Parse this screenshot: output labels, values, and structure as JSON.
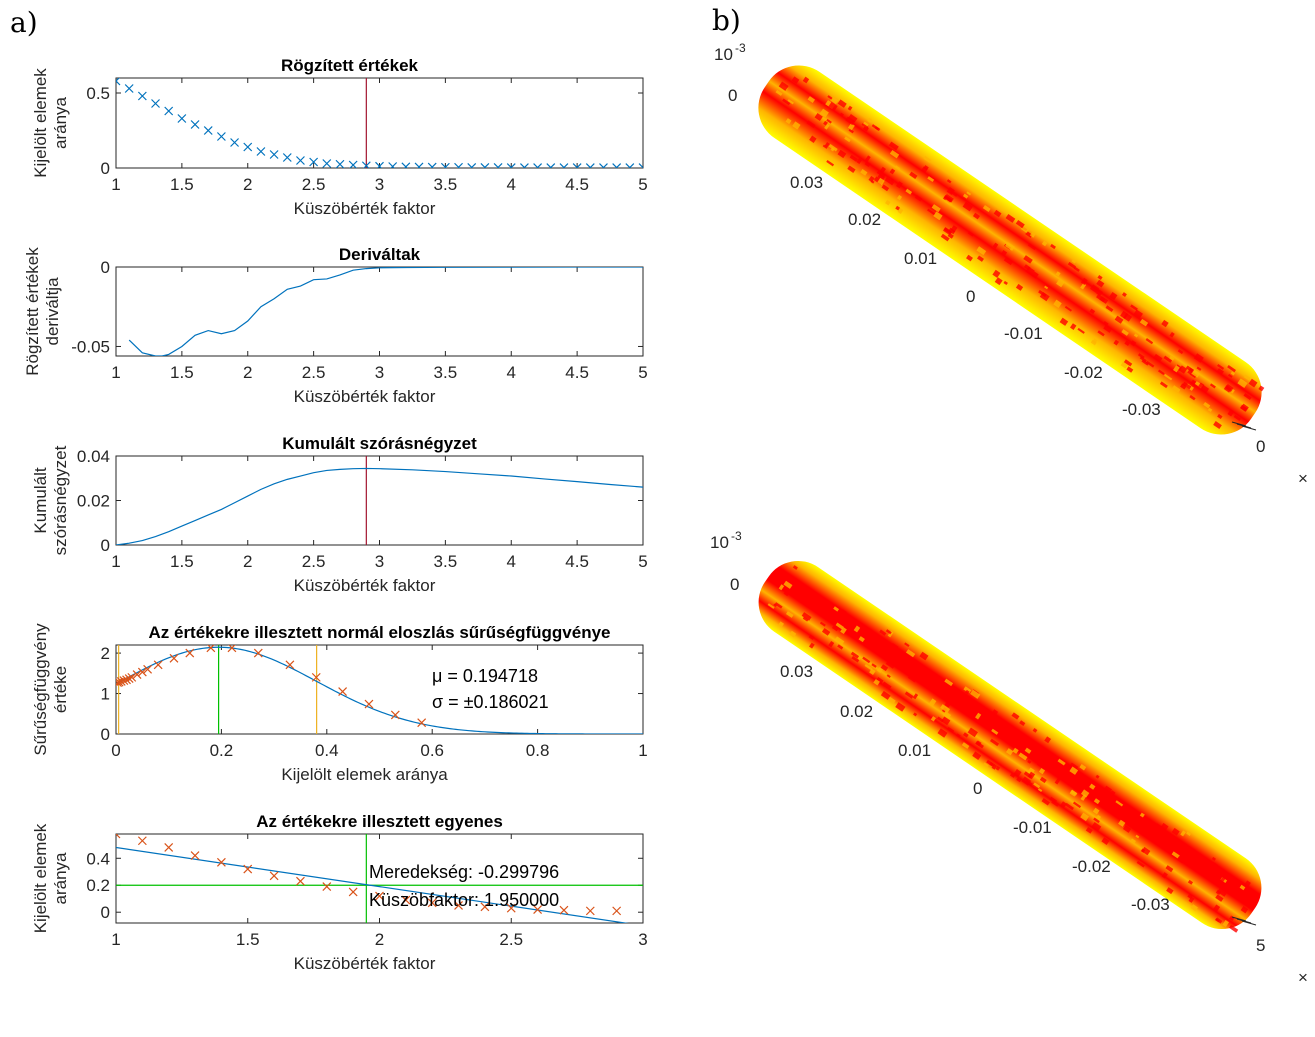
{
  "panel_labels": {
    "a": "a)",
    "b": "b)"
  },
  "chart_data": [
    {
      "type": "scatter",
      "title": "Rögzített értékek",
      "xlabel": "Küszöbérték faktor",
      "ylabel": [
        "Kijelölt elemek",
        "aránya"
      ],
      "xlim": [
        1,
        5
      ],
      "ylim": [
        0,
        0.6
      ],
      "xticks": [
        1,
        1.5,
        2,
        2.5,
        3,
        3.5,
        4,
        4.5,
        5
      ],
      "yticks": [
        0,
        0.5
      ],
      "series": [
        {
          "marker": "x",
          "color": "#0072BD",
          "x": [
            1.0,
            1.1,
            1.2,
            1.3,
            1.4,
            1.5,
            1.6,
            1.7,
            1.8,
            1.9,
            2.0,
            2.1,
            2.2,
            2.3,
            2.4,
            2.5,
            2.6,
            2.7,
            2.8,
            2.9,
            3.0,
            3.1,
            3.2,
            3.3,
            3.4,
            3.5,
            3.6,
            3.7,
            3.8,
            3.9,
            4.0,
            4.1,
            4.2,
            4.3,
            4.4,
            4.5,
            4.6,
            4.7,
            4.8,
            4.9,
            5.0
          ],
          "y": [
            0.58,
            0.53,
            0.48,
            0.43,
            0.38,
            0.33,
            0.29,
            0.25,
            0.21,
            0.17,
            0.14,
            0.11,
            0.09,
            0.07,
            0.05,
            0.04,
            0.03,
            0.025,
            0.02,
            0.015,
            0.012,
            0.01,
            0.008,
            0.007,
            0.006,
            0.005,
            0.005,
            0.004,
            0.004,
            0.004,
            0.003,
            0.003,
            0.003,
            0.003,
            0.003,
            0.003,
            0.003,
            0.003,
            0.003,
            0.003,
            0.003
          ]
        }
      ],
      "vlines": [
        {
          "x": 2.9,
          "color": "#A2142F"
        }
      ]
    },
    {
      "type": "line",
      "title": "Deriváltak",
      "xlabel": "Küszöbérték faktor",
      "ylabel": [
        "Rögzített értékek",
        "deriváltja"
      ],
      "xlim": [
        1,
        5
      ],
      "ylim": [
        -0.056,
        0
      ],
      "xticks": [
        1,
        1.5,
        2,
        2.5,
        3,
        3.5,
        4,
        4.5,
        5
      ],
      "yticks": [
        -0.05,
        0
      ],
      "yticklabels": [
        "-0.05",
        "0"
      ],
      "series": [
        {
          "color": "#0072BD",
          "x": [
            1.1,
            1.2,
            1.3,
            1.35,
            1.4,
            1.5,
            1.6,
            1.7,
            1.8,
            1.9,
            2.0,
            2.1,
            2.2,
            2.3,
            2.4,
            2.5,
            2.6,
            2.7,
            2.8,
            2.9,
            3.0,
            3.2,
            3.5,
            4.0,
            4.5,
            5.0
          ],
          "y": [
            -0.046,
            -0.054,
            -0.056,
            -0.056,
            -0.055,
            -0.05,
            -0.043,
            -0.04,
            -0.042,
            -0.04,
            -0.034,
            -0.025,
            -0.02,
            -0.014,
            -0.012,
            -0.008,
            -0.0075,
            -0.005,
            -0.002,
            -0.001,
            -0.0005,
            -0.0003,
            -0.0002,
            -0.0001,
            -5e-05,
            0
          ]
        }
      ]
    },
    {
      "type": "line",
      "title": "Kumulált szórásnégyzet",
      "xlabel": "Küszöbérték faktor",
      "ylabel": [
        "Kumulált",
        "szórásnégyzet"
      ],
      "xlim": [
        1,
        5
      ],
      "ylim": [
        0,
        0.04
      ],
      "xticks": [
        1,
        1.5,
        2,
        2.5,
        3,
        3.5,
        4,
        4.5,
        5
      ],
      "yticks": [
        0,
        0.02,
        0.04
      ],
      "series": [
        {
          "color": "#0072BD",
          "x": [
            1.0,
            1.1,
            1.2,
            1.3,
            1.4,
            1.5,
            1.6,
            1.7,
            1.8,
            1.9,
            2.0,
            2.1,
            2.2,
            2.3,
            2.4,
            2.5,
            2.6,
            2.7,
            2.8,
            2.9,
            3.0,
            3.25,
            3.5,
            3.75,
            4.0,
            4.25,
            4.5,
            4.75,
            5.0
          ],
          "y": [
            0,
            0.0008,
            0.002,
            0.0038,
            0.006,
            0.0085,
            0.011,
            0.0135,
            0.016,
            0.019,
            0.022,
            0.025,
            0.0275,
            0.0295,
            0.031,
            0.0325,
            0.0335,
            0.034,
            0.0343,
            0.0344,
            0.0343,
            0.0338,
            0.033,
            0.032,
            0.031,
            0.0297,
            0.0285,
            0.0272,
            0.026
          ]
        }
      ],
      "vlines": [
        {
          "x": 2.9,
          "color": "#A2142F"
        }
      ]
    },
    {
      "type": "line",
      "title": "Az értékekre illesztett normál eloszlás sűrűségfüggvénye",
      "xlabel": "Kijelölt elemek aránya",
      "ylabel": [
        "Sűrűségfüggvény",
        "értéke"
      ],
      "xlim": [
        0,
        1
      ],
      "ylim": [
        0,
        2.2
      ],
      "xticks": [
        0,
        0.2,
        0.4,
        0.6,
        0.8,
        1
      ],
      "yticks": [
        0,
        1,
        2
      ],
      "annotations": [
        "μ = 0.194718",
        "σ = ±0.186021"
      ],
      "series": [
        {
          "name": "fit",
          "color": "#0072BD",
          "mu": 0.194718,
          "sigma": 0.186021
        },
        {
          "name": "values",
          "marker": "x",
          "color": "#D95319",
          "x": [
            0.003,
            0.006,
            0.01,
            0.015,
            0.02,
            0.025,
            0.03,
            0.04,
            0.05,
            0.06,
            0.08,
            0.11,
            0.14,
            0.18,
            0.22,
            0.27,
            0.33,
            0.38,
            0.43,
            0.48,
            0.53,
            0.58
          ],
          "y": [
            1.27,
            1.28,
            1.3,
            1.32,
            1.34,
            1.37,
            1.4,
            1.47,
            1.53,
            1.6,
            1.71,
            1.87,
            2.0,
            2.13,
            2.13,
            2.0,
            1.71,
            1.4,
            1.05,
            0.74,
            0.47,
            0.28
          ]
        }
      ],
      "vlines": [
        {
          "x": 0.005,
          "color": "#EDB120"
        },
        {
          "x": 0.1947,
          "color": "#00C000"
        },
        {
          "x": 0.3807,
          "color": "#EDB120"
        }
      ]
    },
    {
      "type": "line",
      "title": "Az értékekre illesztett egyenes",
      "xlabel": "Küszöbérték faktor",
      "ylabel": [
        "Kijelölt elemek",
        "aránya"
      ],
      "xlim": [
        1,
        3
      ],
      "ylim": [
        -0.08,
        0.58
      ],
      "xticks": [
        1,
        1.5,
        2,
        2.5,
        3
      ],
      "yticks": [
        0,
        0.2,
        0.4
      ],
      "annotations": [
        "Meredekség: -0.299796",
        "Küszöbfaktor: 1.950000"
      ],
      "series": [
        {
          "name": "fit",
          "color": "#0072BD",
          "x": [
            1,
            3
          ],
          "y": [
            0.48,
            -0.1
          ]
        },
        {
          "name": "values",
          "marker": "x",
          "color": "#D95319",
          "x": [
            1.0,
            1.1,
            1.2,
            1.3,
            1.4,
            1.5,
            1.6,
            1.7,
            1.8,
            1.9,
            2.0,
            2.1,
            2.2,
            2.3,
            2.4,
            2.5,
            2.6,
            2.7,
            2.8,
            2.9
          ],
          "y": [
            0.58,
            0.53,
            0.48,
            0.42,
            0.37,
            0.32,
            0.27,
            0.23,
            0.19,
            0.15,
            0.12,
            0.09,
            0.07,
            0.05,
            0.04,
            0.03,
            0.02,
            0.015,
            0.01,
            0.01
          ]
        }
      ],
      "hlines": [
        {
          "y": 0.2,
          "color": "#00C000"
        }
      ],
      "vlines": [
        {
          "x": 1.95,
          "color": "#00C000"
        }
      ]
    },
    {
      "type": "scatter",
      "view": "3d",
      "exponent_label": "10-3",
      "axis_ticks": [
        "0",
        "0.03",
        "0.02",
        "0.01",
        "0",
        "-0.01",
        "-0.02",
        "-0.03"
      ],
      "end_label": "0",
      "multiplier_label": "×",
      "colors": [
        "#FF0000",
        "#FFB400",
        "#FFFF00"
      ]
    },
    {
      "type": "scatter",
      "view": "3d",
      "exponent_label": "10-3",
      "axis_ticks": [
        "0",
        "0.03",
        "0.02",
        "0.01",
        "0",
        "-0.01",
        "-0.02",
        "-0.03"
      ],
      "end_label": "5",
      "multiplier_label": "×",
      "colors": [
        "#FF0000",
        "#FFB400",
        "#FFFF00"
      ]
    }
  ]
}
